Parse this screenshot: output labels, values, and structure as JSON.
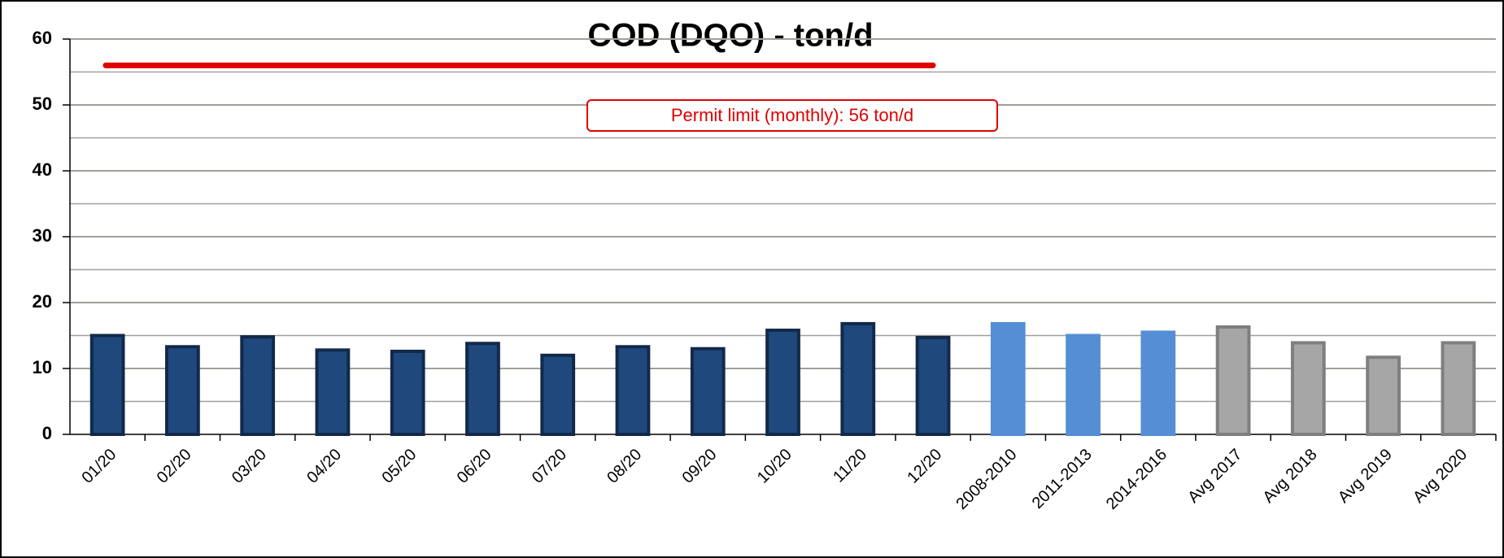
{
  "chart_data": {
    "type": "bar",
    "title": "COD (DQO) - ton/d",
    "categories": [
      "01/20",
      "02/20",
      "03/20",
      "04/20",
      "05/20",
      "06/20",
      "07/20",
      "08/20",
      "09/20",
      "10/20",
      "11/20",
      "12/20",
      "2008-2010",
      "2011-2013",
      "2014-2016",
      "Avg 2017",
      "Avg 2018",
      "Avg 2019",
      "Avg 2020"
    ],
    "values": [
      15,
      13.3,
      14.8,
      12.8,
      12.6,
      13.8,
      12,
      13.3,
      13,
      15.8,
      16.8,
      14.7,
      16.8,
      15,
      15.5,
      16.3,
      13.9,
      11.7,
      13.9
    ],
    "colors": [
      "#1f497d",
      "#1f497d",
      "#1f497d",
      "#1f497d",
      "#1f497d",
      "#1f497d",
      "#1f497d",
      "#1f497d",
      "#1f497d",
      "#1f497d",
      "#1f497d",
      "#1f497d",
      "#558ed5",
      "#558ed5",
      "#558ed5",
      "#a6a6a6",
      "#a6a6a6",
      "#a6a6a6",
      "#a6a6a6"
    ],
    "edge_colors": [
      "#13294a",
      "#13294a",
      "#13294a",
      "#13294a",
      "#13294a",
      "#13294a",
      "#13294a",
      "#13294a",
      "#13294a",
      "#13294a",
      "#13294a",
      "#13294a",
      "#558ed5",
      "#558ed5",
      "#558ed5",
      "#7f7f7f",
      "#7f7f7f",
      "#7f7f7f",
      "#7f7f7f"
    ],
    "ylim": [
      0,
      60
    ],
    "yticks": [
      0,
      10,
      20,
      30,
      40,
      50,
      60
    ],
    "minor_yticks": [
      5,
      15,
      25,
      35,
      45,
      55
    ],
    "grid": true,
    "limit": 56,
    "limit_color": "#e00000",
    "annotation": "Permit limit (monthly): 56 ton/d"
  }
}
